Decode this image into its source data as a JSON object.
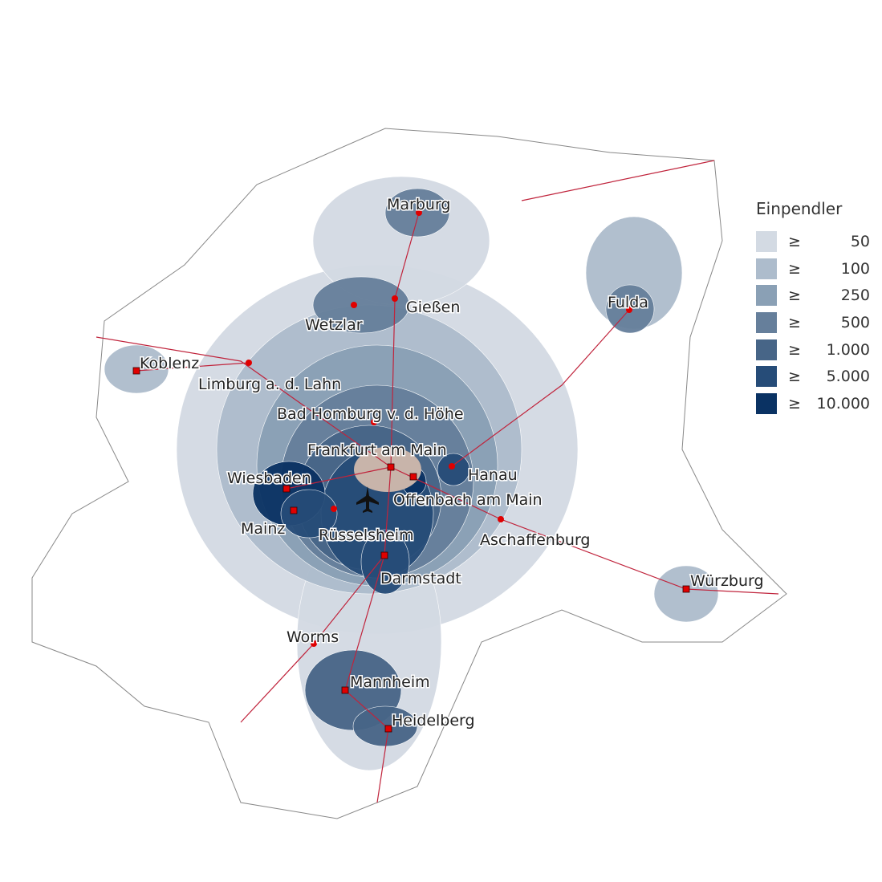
{
  "legend": {
    "title": "Einpendler",
    "symbol": "≥",
    "classes": [
      {
        "label": "50",
        "color": "#d3dae3"
      },
      {
        "label": "100",
        "color": "#adbccc"
      },
      {
        "label": "250",
        "color": "#8aa0b5"
      },
      {
        "label": "500",
        "color": "#667f9b"
      },
      {
        "label": "1.000",
        "color": "#476587"
      },
      {
        "label": "5.000",
        "color": "#264c78"
      },
      {
        "label": "10.000",
        "color": "#0a3263"
      }
    ]
  },
  "destination_color": "#c8b4aa",
  "rail_color": "#c0243c",
  "marker_color": "#e00000",
  "airport_icon": "airplane-icon",
  "cities": [
    {
      "name": "Marburg",
      "marker": "circle"
    },
    {
      "name": "Gießen",
      "marker": "circle"
    },
    {
      "name": "Wetzlar",
      "marker": "circle"
    },
    {
      "name": "Fulda",
      "marker": "circle"
    },
    {
      "name": "Koblenz",
      "marker": "square"
    },
    {
      "name": "Limburg a. d. Lahn",
      "marker": "circle"
    },
    {
      "name": "Bad Homburg v. d. Höhe",
      "marker": "circle"
    },
    {
      "name": "Frankfurt am Main",
      "marker": "square"
    },
    {
      "name": "Hanau",
      "marker": "circle"
    },
    {
      "name": "Offenbach am Main",
      "marker": "square"
    },
    {
      "name": "Wiesbaden",
      "marker": "square"
    },
    {
      "name": "Mainz",
      "marker": "square"
    },
    {
      "name": "Rüsselsheim",
      "marker": "circle"
    },
    {
      "name": "Aschaffenburg",
      "marker": "circle"
    },
    {
      "name": "Darmstadt",
      "marker": "square"
    },
    {
      "name": "Würzburg",
      "marker": "square"
    },
    {
      "name": "Worms",
      "marker": "circle"
    },
    {
      "name": "Mannheim",
      "marker": "square"
    },
    {
      "name": "Heidelberg",
      "marker": "square"
    }
  ]
}
